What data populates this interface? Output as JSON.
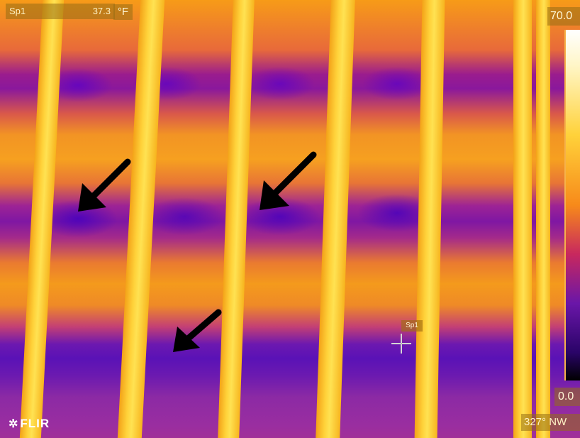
{
  "measurement": {
    "spot_label": "Sp1",
    "spot_value": "37.3",
    "unit": "°F"
  },
  "scale": {
    "max": "70.0",
    "min": "0.0"
  },
  "brand": {
    "logo_text": "FLIR"
  },
  "compass": {
    "heading": "327° NW"
  },
  "spot_marker": {
    "label": "Sp1"
  },
  "colors": {
    "warm_orange": "#f39a1c",
    "rail_yellow": "#ffd23a",
    "cold_purple": "#6c18b0",
    "overlay_tan": "#966e14",
    "arrow": "#000000"
  }
}
